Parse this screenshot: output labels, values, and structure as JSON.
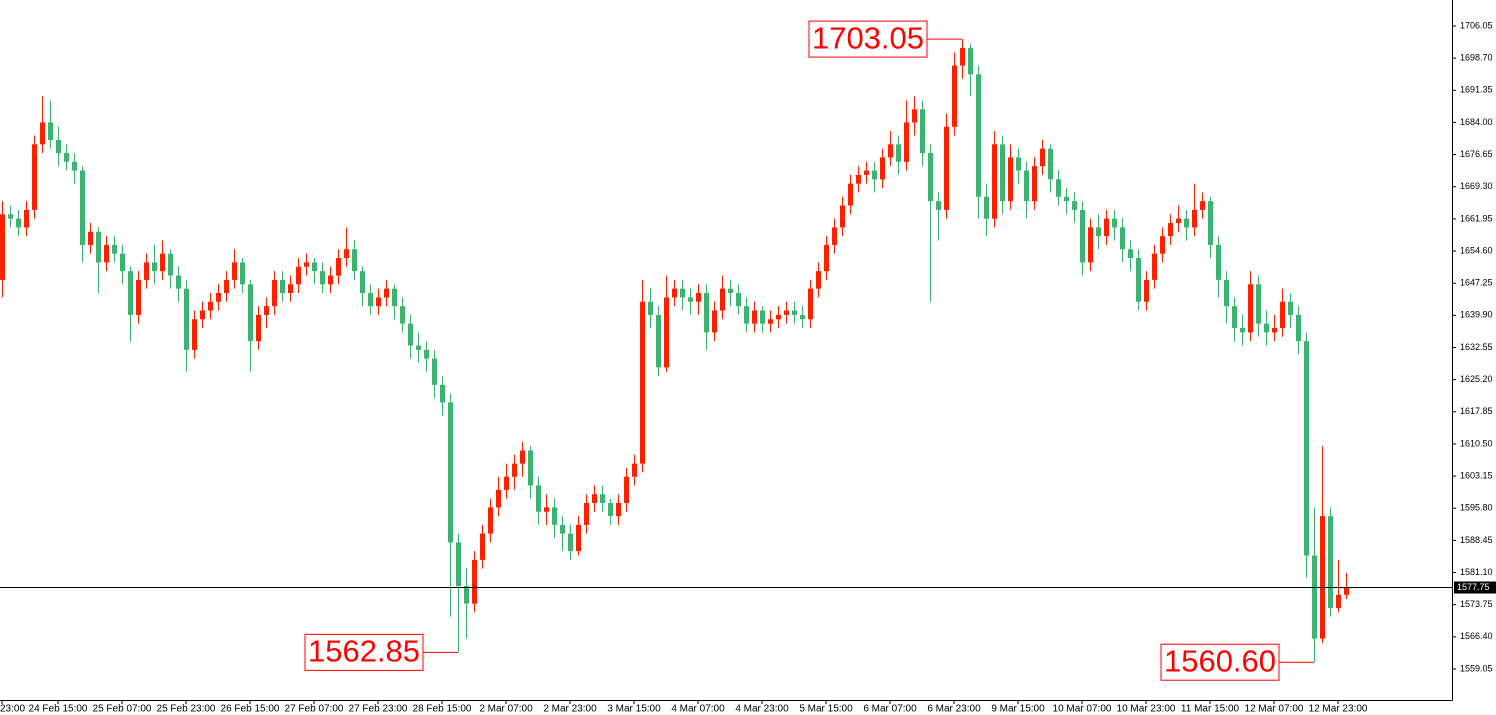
{
  "chart_data": {
    "type": "candlestick",
    "up_color": "#ff2000",
    "down_color": "#3cb371",
    "ylim": [
      1551.96,
      1711.99
    ],
    "yticks": [
      1706.05,
      {
        "value": 1698.7,
        "label": "1698.70"
      },
      1691.35,
      {
        "value": 1684,
        "label": "1684.00"
      },
      1676.65,
      {
        "value": 1669.3,
        "label": "1669.30"
      },
      1661.95,
      {
        "value": 1654.6,
        "label": "1654.60"
      },
      1647.25,
      {
        "value": 1639.9,
        "label": "1639.90"
      },
      1632.55,
      {
        "value": 1625.2,
        "label": "1625.20"
      },
      1617.85,
      {
        "value": 1610.5,
        "label": "1610.50"
      },
      1603.15,
      {
        "value": 1595.8,
        "label": "1595.80"
      },
      1588.45,
      {
        "value": 1581.1,
        "label": "1581.10"
      },
      1573.75,
      {
        "value": 1566.4,
        "label": "1566.40"
      },
      1559.05
    ],
    "current_price": 1577.75,
    "annotations": [
      {
        "value": 1703.05,
        "label": "1703.05"
      },
      {
        "value": 1562.85,
        "label": "1562.85"
      },
      {
        "value": 1560.6,
        "label": "1560.60"
      }
    ],
    "categories": [
      "23:00",
      null,
      null,
      null,
      null,
      null,
      null,
      "24 Feb 15:00",
      null,
      null,
      null,
      null,
      null,
      null,
      null,
      "25 Feb 07:00",
      null,
      null,
      null,
      null,
      null,
      null,
      null,
      "25 Feb 23:00",
      null,
      null,
      null,
      null,
      null,
      null,
      null,
      "26 Feb 15:00",
      null,
      null,
      null,
      null,
      null,
      null,
      null,
      "27 Feb 07:00",
      null,
      null,
      null,
      null,
      null,
      null,
      null,
      "27 Feb 23:00",
      null,
      null,
      null,
      null,
      null,
      null,
      null,
      "28 Feb 15:00",
      null,
      null,
      null,
      null,
      null,
      null,
      null,
      "2 Mar 07:00",
      null,
      null,
      null,
      null,
      null,
      null,
      null,
      "2 Mar 23:00",
      null,
      null,
      null,
      null,
      null,
      null,
      null,
      "3 Mar 15:00",
      null,
      null,
      null,
      null,
      null,
      null,
      null,
      "4 Mar 07:00",
      null,
      null,
      null,
      null,
      null,
      null,
      null,
      "4 Mar 23:00",
      null,
      null,
      null,
      null,
      null,
      null,
      null,
      "5 Mar 15:00",
      null,
      null,
      null,
      null,
      null,
      null,
      null,
      "6 Mar 07:00",
      null,
      null,
      null,
      null,
      null,
      null,
      null,
      "6 Mar 23:00",
      null,
      null,
      null,
      null,
      null,
      null,
      null,
      "9 Mar 15:00",
      null,
      null,
      null,
      null,
      null,
      null,
      null,
      "10 Mar 07:00",
      null,
      null,
      null,
      null,
      null,
      null,
      null,
      "10 Mar 23:00",
      null,
      null,
      null,
      null,
      null,
      null,
      null,
      "11 Mar 15:00",
      null,
      null,
      null,
      null,
      null,
      null,
      null,
      "12 Mar 07:00",
      null,
      null,
      null,
      null,
      null,
      null,
      null,
      "12 Mar 23:00",
      null
    ],
    "open": [
      1648,
      1663,
      1662,
      1660,
      1664,
      1679,
      1684,
      1680,
      1677,
      1675,
      1673,
      1656,
      1659,
      1652,
      1656,
      1654,
      1650,
      1640,
      1648,
      1652,
      1650,
      1654,
      1649,
      1646,
      1632,
      1639,
      1641,
      1643,
      1645,
      1648,
      1652,
      1647,
      1634,
      1640,
      1642,
      1648,
      1645,
      1647,
      1651,
      1652,
      1650,
      1647,
      1649,
      1653,
      1655,
      1650,
      1645,
      1642,
      1644,
      1646,
      1642,
      1638,
      1633,
      1632,
      1630,
      1624,
      1620,
      1588,
      1578,
      1574,
      1584,
      1590,
      1596,
      1600,
      1603,
      1606,
      1609,
      1601,
      1595,
      1596,
      1592,
      1590,
      1586,
      1592,
      1597,
      1599,
      1597,
      1594,
      1597,
      1603,
      1606,
      1643,
      1640,
      1628,
      1644,
      1646,
      1644,
      1643,
      1645,
      1636,
      1641,
      1646,
      1645,
      1642,
      1638,
      1641,
      1638,
      1639,
      1640,
      1641,
      1640,
      1639,
      1646,
      1650,
      1656,
      1660,
      1665,
      1670,
      1672,
      1673,
      1671,
      1676,
      1679,
      1675,
      1684,
      1687,
      1677,
      1666,
      1664,
      1683,
      1697,
      1701,
      1695,
      1667,
      1662,
      1679,
      1666,
      1676,
      1673,
      1666,
      1674,
      1678,
      1671,
      1667,
      1666,
      1664,
      1652,
      1660,
      1658,
      1662,
      1660,
      1655,
      1653,
      1643,
      1648,
      1654,
      1658,
      1661,
      1662,
      1660,
      1664,
      1666,
      1656,
      1648,
      1642,
      1637,
      1636,
      1647,
      1638,
      1636,
      1637,
      1643,
      1640,
      1634,
      1585,
      1566,
      1594,
      1573,
      1576
    ],
    "high": [
      1666,
      1665,
      1664,
      1666,
      1681,
      1690,
      1689,
      1683,
      1679,
      1677,
      1674,
      1661,
      1660,
      1658,
      1658,
      1656,
      1651,
      1650,
      1654,
      1656,
      1657,
      1655,
      1651,
      1648,
      1641,
      1643,
      1645,
      1647,
      1650,
      1655,
      1653,
      1648,
      1642,
      1644,
      1650,
      1650,
      1649,
      1653,
      1654,
      1653,
      1652,
      1651,
      1655,
      1660,
      1657,
      1651,
      1647,
      1646,
      1648,
      1647,
      1644,
      1640,
      1636,
      1634,
      1632,
      1626,
      1622,
      1590,
      1582,
      1586,
      1592,
      1598,
      1603,
      1606,
      1608,
      1611,
      1610,
      1603,
      1599,
      1598,
      1594,
      1592,
      1594,
      1599,
      1601,
      1601,
      1598,
      1599,
      1605,
      1608,
      1648,
      1646,
      1642,
      1649,
      1648,
      1648,
      1646,
      1647,
      1647,
      1643,
      1649,
      1648,
      1647,
      1644,
      1643,
      1642,
      1641,
      1642,
      1643,
      1643,
      1642,
      1648,
      1652,
      1658,
      1662,
      1667,
      1672,
      1674,
      1675,
      1675,
      1678,
      1682,
      1681,
      1689,
      1690,
      1689,
      1679,
      1668,
      1686,
      1700,
      1703.05,
      1702,
      1697,
      1670,
      1682,
      1681,
      1679,
      1678,
      1675,
      1676,
      1680,
      1679,
      1673,
      1669,
      1668,
      1666,
      1662,
      1663,
      1664,
      1664,
      1662,
      1657,
      1655,
      1650,
      1656,
      1660,
      1663,
      1665,
      1664,
      1670,
      1668,
      1667,
      1658,
      1650,
      1644,
      1640,
      1650,
      1649,
      1641,
      1640,
      1646,
      1645,
      1642,
      1636,
      1596,
      1610,
      1596,
      1584,
      1581
    ],
    "low": [
      1644,
      1660,
      1658,
      1658,
      1662,
      1677,
      1678,
      1674,
      1673,
      1670,
      1652,
      1654,
      1645,
      1650,
      1652,
      1647,
      1634,
      1638,
      1646,
      1647,
      1648,
      1646,
      1643,
      1627,
      1630,
      1637,
      1639,
      1641,
      1643,
      1646,
      1645,
      1627,
      1632,
      1637,
      1640,
      1643,
      1643,
      1645,
      1649,
      1647,
      1645,
      1645,
      1647,
      1651,
      1648,
      1642,
      1640,
      1640,
      1642,
      1639,
      1636,
      1630,
      1629,
      1627,
      1621,
      1617,
      1571,
      1562.85,
      1566,
      1572,
      1582,
      1588,
      1594,
      1598,
      1600,
      1603,
      1598,
      1592,
      1592,
      1589,
      1586,
      1584,
      1585,
      1590,
      1595,
      1595,
      1592,
      1592,
      1595,
      1601,
      1604,
      1637,
      1626,
      1627,
      1642,
      1641,
      1640,
      1640,
      1632,
      1634,
      1639,
      1642,
      1640,
      1636,
      1636,
      1636,
      1636,
      1637,
      1638,
      1638,
      1637,
      1637,
      1644,
      1648,
      1654,
      1658,
      1663,
      1668,
      1670,
      1668,
      1669,
      1674,
      1672,
      1673,
      1681,
      1674,
      1643,
      1657,
      1662,
      1681,
      1694,
      1690,
      1662,
      1658,
      1660,
      1663,
      1664,
      1670,
      1662,
      1664,
      1672,
      1668,
      1665,
      1663,
      1661,
      1649,
      1650,
      1655,
      1656,
      1657,
      1652,
      1650,
      1641,
      1641,
      1646,
      1652,
      1656,
      1659,
      1657,
      1658,
      1662,
      1653,
      1644,
      1638,
      1634,
      1633,
      1634,
      1635,
      1633,
      1634,
      1635,
      1637,
      1631,
      1580,
      1560.6,
      1565,
      1571,
      1572,
      1575
    ],
    "close": [
      1663,
      1662,
      1660,
      1664,
      1679,
      1684,
      1680,
      1677,
      1675,
      1673,
      1656,
      1659,
      1652,
      1656,
      1654,
      1650,
      1640,
      1648,
      1652,
      1650,
      1654,
      1649,
      1646,
      1632,
      1639,
      1641,
      1643,
      1645,
      1648,
      1652,
      1647,
      1634,
      1640,
      1642,
      1648,
      1645,
      1647,
      1651,
      1652,
      1650,
      1647,
      1649,
      1653,
      1655,
      1650,
      1645,
      1642,
      1644,
      1646,
      1642,
      1638,
      1633,
      1632,
      1630,
      1624,
      1620,
      1588,
      1578,
      1574,
      1584,
      1590,
      1596,
      1600,
      1603,
      1606,
      1609,
      1601,
      1595,
      1596,
      1592,
      1590,
      1586,
      1592,
      1597,
      1599,
      1597,
      1594,
      1597,
      1603,
      1606,
      1643,
      1640,
      1628,
      1644,
      1646,
      1644,
      1643,
      1645,
      1636,
      1641,
      1646,
      1645,
      1642,
      1638,
      1641,
      1638,
      1639,
      1640,
      1641,
      1640,
      1639,
      1646,
      1650,
      1656,
      1660,
      1665,
      1670,
      1672,
      1673,
      1671,
      1676,
      1679,
      1675,
      1684,
      1687,
      1677,
      1666,
      1664,
      1683,
      1697,
      1701,
      1695,
      1667,
      1662,
      1679,
      1666,
      1676,
      1673,
      1666,
      1674,
      1678,
      1671,
      1667,
      1666,
      1664,
      1652,
      1660,
      1658,
      1662,
      1660,
      1655,
      1653,
      1643,
      1648,
      1654,
      1658,
      1661,
      1662,
      1660,
      1664,
      1666,
      1656,
      1648,
      1642,
      1637,
      1636,
      1647,
      1638,
      1636,
      1637,
      1643,
      1640,
      1634,
      1585,
      1566,
      1594,
      1573,
      1576,
      1577.75
    ]
  }
}
